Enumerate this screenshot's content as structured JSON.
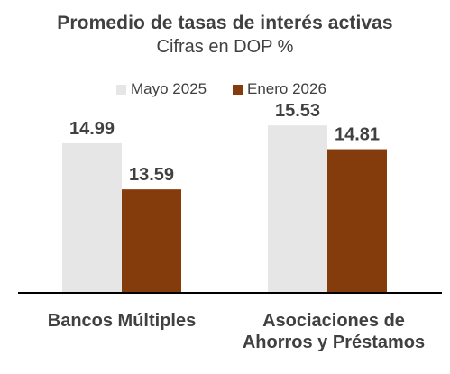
{
  "chart_data": {
    "type": "bar",
    "title": "Promedio  de tasas de interés  activas",
    "subtitle": "Cifras en DOP %",
    "categories": [
      "Bancos Múltiples",
      "Asociaciones de Ahorros y Préstamos"
    ],
    "category_lines": [
      [
        "Bancos Múltiples"
      ],
      [
        "Asociaciones de",
        "Ahorros y Préstamos"
      ]
    ],
    "series": [
      {
        "name": "Mayo 2025",
        "values": [
          14.99,
          15.53
        ],
        "value_labels": [
          "14.99",
          "15.53"
        ],
        "color": "#e6e6e6"
      },
      {
        "name": "Enero 2026",
        "values": [
          13.59,
          14.81
        ],
        "value_labels": [
          "13.59",
          "14.81"
        ],
        "color": "#843c0c"
      }
    ],
    "xlabel": "",
    "ylabel": "",
    "ylim": [
      10.45,
      16.0
    ],
    "grid": false,
    "legend_position": "top"
  }
}
